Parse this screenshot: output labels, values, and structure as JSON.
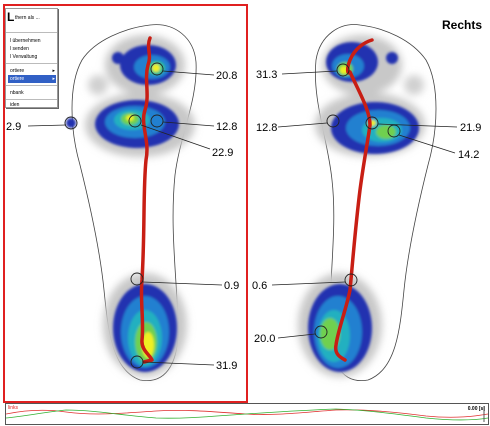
{
  "side_label": "Rechts",
  "menu": {
    "title": "L",
    "title_sub": "thern als ...",
    "items": [
      {
        "label": "l übernehmen",
        "selected": false,
        "submenu": false
      },
      {
        "label": "l senden",
        "selected": false,
        "submenu": false
      },
      {
        "label": "l Verwaltung",
        "selected": false,
        "submenu": false
      },
      {
        "label": "ortiere",
        "selected": false,
        "submenu": true
      },
      {
        "label": "ortiere",
        "selected": true,
        "submenu": true
      },
      {
        "label": "nbank",
        "selected": false,
        "submenu": false
      },
      {
        "label": "iden",
        "selected": false,
        "submenu": false
      }
    ]
  },
  "left_foot": {
    "labels": [
      "20.8",
      "2.9",
      "12.8",
      "22.9",
      "0.9",
      "31.9"
    ]
  },
  "right_foot": {
    "labels": [
      "31.3",
      "12.8",
      "21.9",
      "14.2",
      "0.6",
      "20.0"
    ]
  },
  "timeline": {
    "label": "links",
    "time": "0.00 [s]",
    "colors": {
      "series_a": "#e03030",
      "series_b": "#30b030"
    }
  },
  "colors": {
    "selection_border": "#e02020",
    "cop_trace": "#c81e14",
    "pressure_low": "#2030b0",
    "pressure_mid": "#20b0c0",
    "pressure_high": "#f0f020",
    "halo": "#c8c8c8"
  }
}
